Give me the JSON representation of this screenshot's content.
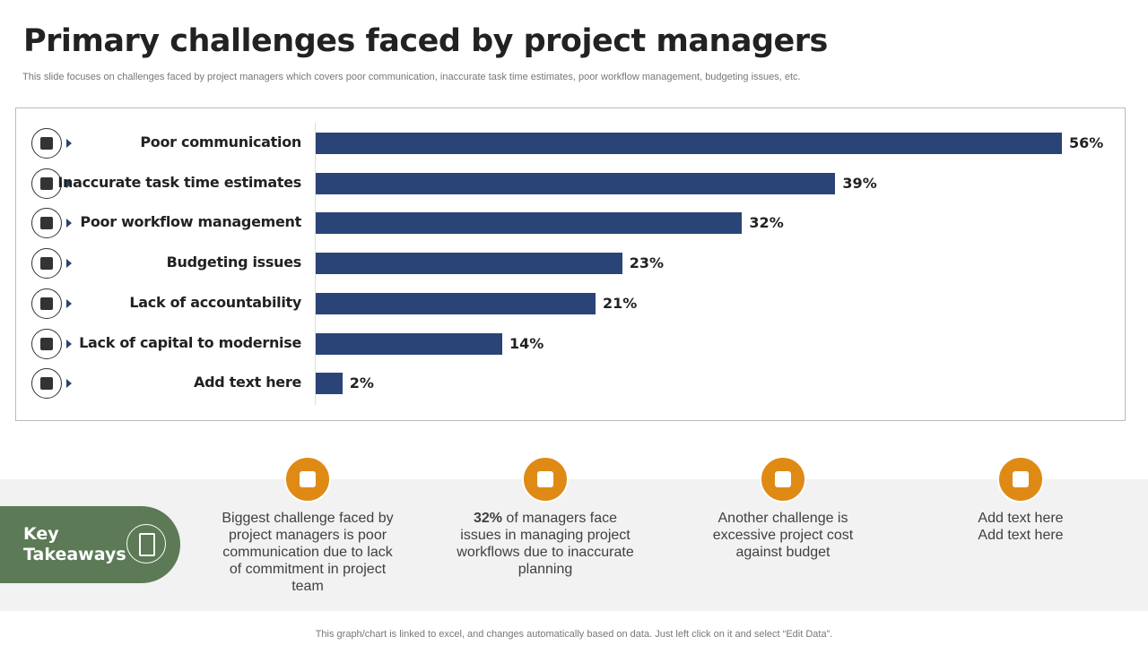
{
  "title": "Primary challenges faced by project managers",
  "subtitle": "This slide focuses on challenges faced by project managers which covers poor communication, inaccurate task time estimates, poor workflow management, budgeting issues, etc.",
  "colors": {
    "bar": "#2b4477",
    "accent": "#e08a16",
    "takeaway": "#5b7a55"
  },
  "chart_data": {
    "type": "bar",
    "orientation": "horizontal",
    "categories": [
      "Poor communication",
      "Inaccurate task time estimates",
      "Poor workflow management",
      "Budgeting issues",
      "Lack of accountability",
      "Lack of capital to modernise",
      "Add text here"
    ],
    "values": [
      56,
      39,
      32,
      23,
      21,
      14,
      2
    ],
    "data_labels": [
      "56%",
      "39%",
      "32%",
      "23%",
      "21%",
      "14%",
      "2%"
    ],
    "icons": [
      "communication-icon",
      "calendar-icon",
      "award-icon",
      "budget-calculator-icon",
      "accountability-icon",
      "capital-hand-icon",
      "document-pen-icon"
    ],
    "xlim": [
      0,
      56
    ],
    "grid": false,
    "legend": "none"
  },
  "takeaways": {
    "label_line1": "Key",
    "label_line2": "Takeaways",
    "items": [
      {
        "icon": "stairs-climb-icon",
        "text": "Biggest challenge faced by project managers is poor communication due to lack of commitment in project team"
      },
      {
        "icon": "person-question-icon",
        "bold": "32%",
        "text": " of managers face issues in managing project workflows due to inaccurate planning"
      },
      {
        "icon": "chart-cost-icon",
        "text": "Another challenge is excessive project cost against budget"
      },
      {
        "icon": "clipboard-icon",
        "text": "Add text here Add text here"
      }
    ]
  },
  "footer": "This graph/chart is linked to excel,  and changes automatically based on data. Just left click on it and select “Edit Data”."
}
